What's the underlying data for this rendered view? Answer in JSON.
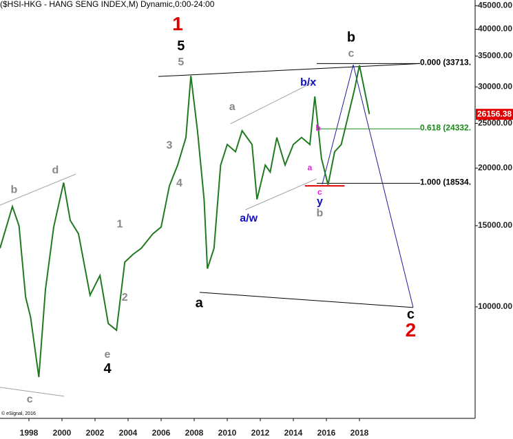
{
  "chart_data": {
    "type": "line",
    "title": "($HSI-HKG - HANG SENG INDEX,M) Dynamic,0:00-24:00",
    "credit": "© eSignal, 2016",
    "log_scale": true,
    "color": "#1f7a1f",
    "xlim": [
      1996.25,
      2025
    ],
    "xticks": [
      1998,
      2000,
      2002,
      2004,
      2006,
      2008,
      2010,
      2012,
      2014,
      2016,
      2018
    ],
    "ylim": [
      5730,
      46300
    ],
    "yticks": [
      {
        "value": 10000,
        "label": "10000.00"
      },
      {
        "value": 15000,
        "label": "15000.00"
      },
      {
        "value": 20000,
        "label": "20000.00"
      },
      {
        "value": 25000,
        "label": "25000.00"
      },
      {
        "value": 30000,
        "label": "30000.00"
      },
      {
        "value": 35000,
        "label": "35000.00"
      },
      {
        "value": 40000,
        "label": "40000.00"
      },
      {
        "value": 45000,
        "label": "45000.00"
      }
    ],
    "x": [
      1996.25,
      1997.0,
      1997.4,
      1997.8,
      1998.1,
      1998.6,
      1999.0,
      1999.5,
      2000.1,
      2000.5,
      2001.0,
      2001.7,
      2002.3,
      2002.8,
      2003.3,
      2003.8,
      2004.3,
      2004.8,
      2005.5,
      2006.0,
      2006.5,
      2007.0,
      2007.5,
      2007.8,
      2008.2,
      2008.6,
      2008.8,
      2009.2,
      2009.6,
      2010.0,
      2010.5,
      2010.9,
      2011.5,
      2011.8,
      2012.3,
      2012.6,
      2013.0,
      2013.5,
      2014.0,
      2014.5,
      2015.0,
      2015.3,
      2015.7,
      2016.1,
      2016.5,
      2016.9,
      2017.3,
      2017.7,
      2018.0,
      2018.3,
      2018.6
    ],
    "values": [
      13400,
      16500,
      15000,
      10500,
      9500,
      7040,
      10900,
      14900,
      18600,
      15400,
      14400,
      10600,
      11700,
      9200,
      8900,
      12500,
      13000,
      13400,
      14400,
      14900,
      18300,
      20300,
      23300,
      31700,
      24100,
      17100,
      12100,
      13400,
      20300,
      22500,
      21700,
      24100,
      22500,
      17100,
      20300,
      19600,
      23300,
      20300,
      22500,
      23300,
      22500,
      28600,
      21000,
      18400,
      21700,
      22500,
      25800,
      29600,
      33400,
      29600,
      26200
    ],
    "last_price": 26156.38,
    "fib_levels": [
      {
        "label": "0.000 (33713.",
        "value": 33713,
        "color": "#000000"
      },
      {
        "label": "0.618 (24332.",
        "value": 24332,
        "color": "#1a8a1a"
      },
      {
        "label": "1.000 (18534.",
        "value": 18534,
        "color": "#000000"
      }
    ],
    "trendlines": [
      {
        "x": [
          2005.83,
          2021.67
        ],
        "y": [
          31600,
          33713
        ],
        "color": "#000000"
      },
      {
        "x": [
          2008.33,
          2021.25
        ],
        "y": [
          10750,
          9970
        ],
        "color": "#000000"
      },
      {
        "x": [
          2017.625,
          2021.25
        ],
        "y": [
          33500,
          9970
        ],
        "color": "#1a1aa0"
      },
      {
        "x": [
          2015.75,
          2017.625
        ],
        "y": [
          18450,
          33500
        ],
        "color": "#1a1aa0"
      },
      {
        "x": [
          1996.25,
          2000.83
        ],
        "y": [
          16620,
          19400
        ],
        "color": "#a0a0a0"
      },
      {
        "x": [
          1996.25,
          2000.125
        ],
        "y": [
          6690,
          6400
        ],
        "color": "#a0a0a0"
      },
      {
        "x": [
          2010.2,
          2015.4
        ],
        "y": [
          24950,
          30970
        ],
        "color": "#a0a0a0"
      },
      {
        "x": [
          2011.1,
          2015.4
        ],
        "y": [
          16240,
          18950
        ],
        "color": "#a0a0a0"
      },
      {
        "x": [
          2014.7,
          2017.1
        ],
        "y": [
          18300,
          18300
        ],
        "color": "#e00000"
      }
    ],
    "annotations": [
      {
        "text": "1",
        "x": 2007.0,
        "y": 40800,
        "color": "#e00000",
        "size": "large"
      },
      {
        "text": "5",
        "x": 2007.2,
        "y": 36670,
        "color": "#000000",
        "size": "medium"
      },
      {
        "text": "5",
        "x": 2007.2,
        "y": 33900,
        "color": "#888888",
        "size": "small"
      },
      {
        "text": "b",
        "x": 2017.5,
        "y": 38300,
        "color": "#000000",
        "size": "medium"
      },
      {
        "text": "c",
        "x": 2017.5,
        "y": 35400,
        "color": "#888888",
        "size": "small"
      },
      {
        "text": "b/x",
        "x": 2014.9,
        "y": 30650,
        "color": "#1010c0",
        "size": "small"
      },
      {
        "text": "a",
        "x": 2010.3,
        "y": 27100,
        "color": "#888888",
        "size": "small"
      },
      {
        "text": "3",
        "x": 2006.5,
        "y": 22350,
        "color": "#888888",
        "size": "small"
      },
      {
        "text": "4",
        "x": 2007.1,
        "y": 18500,
        "color": "#888888",
        "size": "small"
      },
      {
        "text": "b",
        "x": 1997.1,
        "y": 17930,
        "color": "#888888",
        "size": "small"
      },
      {
        "text": "d",
        "x": 1999.6,
        "y": 19750,
        "color": "#888888",
        "size": "small"
      },
      {
        "text": "1",
        "x": 2003.5,
        "y": 15100,
        "color": "#888888",
        "size": "small"
      },
      {
        "text": "2",
        "x": 2003.8,
        "y": 10460,
        "color": "#888888",
        "size": "small"
      },
      {
        "text": "e",
        "x": 2002.75,
        "y": 7860,
        "color": "#888888",
        "size": "small"
      },
      {
        "text": "4",
        "x": 2002.75,
        "y": 7315,
        "color": "#000000",
        "size": "medium"
      },
      {
        "text": "c",
        "x": 1998.05,
        "y": 6290,
        "color": "#888888",
        "size": "small"
      },
      {
        "text": "a",
        "x": 2008.3,
        "y": 10170,
        "color": "#000000",
        "size": "medium"
      },
      {
        "text": "a/w",
        "x": 2011.3,
        "y": 15530,
        "color": "#1010c0",
        "size": "small"
      },
      {
        "text": "b",
        "x": 2015.5,
        "y": 24350,
        "color": "#e020e0",
        "size": "tiny"
      },
      {
        "text": "a",
        "x": 2015.0,
        "y": 20000,
        "color": "#e020e0",
        "size": "tiny"
      },
      {
        "text": "c",
        "x": 2015.6,
        "y": 17700,
        "color": "#e020e0",
        "size": "tiny"
      },
      {
        "text": "y",
        "x": 2015.6,
        "y": 16910,
        "color": "#1010c0",
        "size": "small"
      },
      {
        "text": "b",
        "x": 2015.6,
        "y": 15950,
        "color": "#888888",
        "size": "small"
      },
      {
        "text": "c",
        "x": 2021.1,
        "y": 9600,
        "color": "#000000",
        "size": "medium"
      },
      {
        "text": "2",
        "x": 2021.1,
        "y": 8840,
        "color": "#e00000",
        "size": "large"
      }
    ]
  }
}
